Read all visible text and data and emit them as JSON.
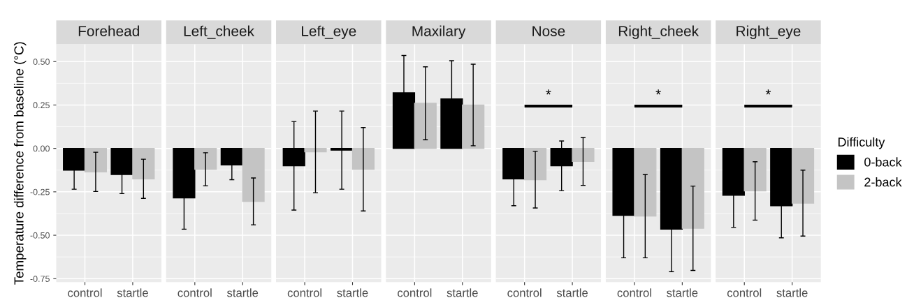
{
  "chart_data": [
    {
      "type": "bar",
      "title": "Forehead",
      "ylabel": "Temperature difference from baseline (°C)",
      "categories": [
        "control",
        "startle"
      ],
      "ylim": [
        -0.77,
        0.6
      ],
      "yticks": [
        {
          "value": -0.75,
          "label": "-0.75"
        },
        {
          "value": -0.5,
          "label": "-0.50"
        },
        {
          "value": -0.25,
          "label": "-0.25"
        },
        {
          "value": 0,
          "label": "0.00"
        },
        {
          "value": 0.25,
          "label": "0.25"
        },
        {
          "value": 0.5,
          "label": "0.50"
        }
      ],
      "grid": true,
      "series": [
        {
          "color": "#000000",
          "values": [
            -0.125,
            -0.15
          ],
          "errors": [
            0.11,
            0.11
          ]
        },
        {
          "color": "#c4c4c4",
          "values": [
            -0.135,
            -0.175
          ],
          "errors": [
            0.113,
            0.113
          ]
        }
      ]
    },
    {
      "type": "bar",
      "title": "Left_cheek",
      "categories": [
        "control",
        "startle"
      ],
      "ylim": [
        -0.77,
        0.6
      ],
      "yticks": [
        -0.75,
        -0.5,
        -0.25,
        0,
        0.25,
        0.5
      ],
      "tick_labels": "x",
      "grid": true,
      "series": [
        {
          "color": "#000000",
          "values": [
            -0.285,
            -0.095
          ],
          "errors": [
            0.18,
            0.085
          ]
        },
        {
          "color": "#c4c4c4",
          "values": [
            -0.12,
            -0.305
          ],
          "errors": [
            0.095,
            0.135
          ]
        }
      ]
    },
    {
      "type": "bar",
      "title": "Left_eye",
      "categories": [
        "control",
        "startle"
      ],
      "ylim": [
        -0.77,
        0.6
      ],
      "yticks": [
        -0.75,
        -0.5,
        -0.25,
        0,
        0.25,
        0.5
      ],
      "tick_labels": "x",
      "grid": true,
      "series": [
        {
          "color": "#000000",
          "values": [
            -0.1,
            -0.01
          ],
          "errors": [
            0.255,
            0.225
          ]
        },
        {
          "color": "#c4c4c4",
          "values": [
            -0.02,
            -0.12
          ],
          "errors": [
            0.235,
            0.24
          ]
        }
      ]
    },
    {
      "type": "bar",
      "title": "Maxilary",
      "categories": [
        "control",
        "startle"
      ],
      "ylim": [
        -0.77,
        0.6
      ],
      "yticks": [
        -0.75,
        -0.5,
        -0.25,
        0,
        0.25,
        0.5
      ],
      "tick_labels": "x",
      "grid": true,
      "series": [
        {
          "color": "#000000",
          "values": [
            0.32,
            0.285
          ],
          "errors": [
            0.215,
            0.22
          ]
        },
        {
          "color": "#c4c4c4",
          "values": [
            0.26,
            0.25
          ],
          "errors": [
            0.21,
            0.235
          ]
        }
      ]
    },
    {
      "type": "bar",
      "title": "Nose",
      "categories": [
        "control",
        "startle"
      ],
      "ylim": [
        -0.77,
        0.6
      ],
      "yticks": [
        -0.75,
        -0.5,
        -0.25,
        0,
        0.25,
        0.5
      ],
      "tick_labels": "x",
      "grid": true,
      "annotations": [
        "*"
      ],
      "series": [
        {
          "color": "#000000",
          "values": [
            -0.175,
            -0.1
          ],
          "errors": [
            0.155,
            0.143
          ]
        },
        {
          "color": "#c4c4c4",
          "values": [
            -0.18,
            -0.075
          ],
          "errors": [
            0.163,
            0.138
          ]
        }
      ]
    },
    {
      "type": "bar",
      "title": "Right_cheek",
      "categories": [
        "control",
        "startle"
      ],
      "ylim": [
        -0.77,
        0.6
      ],
      "yticks": [
        -0.75,
        -0.5,
        -0.25,
        0,
        0.25,
        0.5
      ],
      "tick_labels": "x",
      "grid": true,
      "annotations": [
        "*"
      ],
      "series": [
        {
          "color": "#000000",
          "values": [
            -0.385,
            -0.465
          ],
          "errors": [
            0.245,
            0.245
          ]
        },
        {
          "color": "#c4c4c4",
          "values": [
            -0.39,
            -0.46
          ],
          "errors": [
            0.24,
            0.243
          ]
        }
      ]
    },
    {
      "type": "bar",
      "title": "Right_eye",
      "categories": [
        "control",
        "startle"
      ],
      "ylim": [
        -0.77,
        0.6
      ],
      "yticks": [
        -0.75,
        -0.5,
        -0.25,
        0,
        0.25,
        0.5
      ],
      "tick_labels": "x",
      "grid": true,
      "legend": "right",
      "legend_title": "Difficulty",
      "annotations": [
        "*"
      ],
      "series": [
        {
          "name": "0-back",
          "color": "#000000",
          "values": [
            -0.27,
            -0.33
          ],
          "errors": [
            0.185,
            0.185
          ]
        },
        {
          "name": "2-back",
          "color": "#c4c4c4",
          "values": [
            -0.245,
            -0.315
          ],
          "errors": [
            0.168,
            0.19
          ]
        }
      ]
    }
  ]
}
